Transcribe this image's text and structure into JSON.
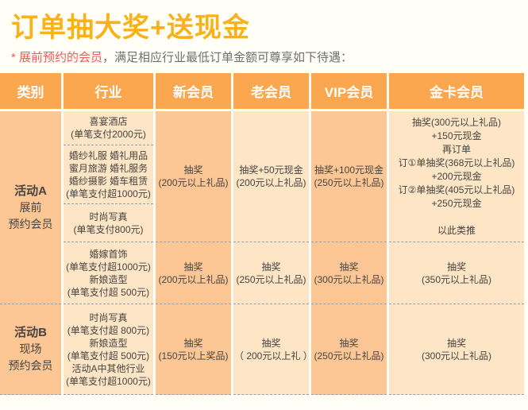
{
  "page": {
    "title": "订单抽大奖+送现金",
    "note": {
      "star": "*",
      "highlight": " 展前预约的会员",
      "rest": "，满足相应行业最低订单金额可尊享如下待遇："
    }
  },
  "colors": {
    "title": "#fcb216",
    "note_highlight": "#fa5a5a",
    "header_bg": "#faa74f",
    "column_dark": "#fcc795",
    "column_light": "#fde5c6",
    "page_bg": "#fffff8",
    "dash": "#97a0a6"
  },
  "table": {
    "headers": [
      "类别",
      "行业",
      "新会员",
      "老会员",
      "VIP会员",
      "金卡会员"
    ],
    "activityA": {
      "category_title": "活动A",
      "category_sub": "展前\n预约会员",
      "industry_banquet": "喜宴酒店\n(单笔支付2000元)",
      "industry_wedding_group": "婚纱礼服  婚礼用品\n蜜月旅游  婚礼服务\n婚纱摄影  婚车租赁\n(单笔支付超1000元)",
      "industry_photo": "时尚写真\n(单笔支付800元)",
      "industry_jewelry": "婚嫁首饰\n(单笔支付超1000元)\n新娘造型\n(单笔支付超 500元)",
      "new_member_1": "抽奖\n(200元以上礼品)",
      "old_member_1": "抽奖+50元现金\n(200元以上礼品)",
      "vip_member_1": "抽奖+100元现金\n(250元以上礼品)",
      "gold_member_1": "抽奖(300元以上礼品)\n+150元现金\n再订单\n订①单抽奖(368元以上礼品)\n+200元现金\n订②单抽奖(405元以上礼品)\n+250元现金\n\n以此类推",
      "new_member_2": "抽奖\n(200元以上礼品)",
      "old_member_2": "抽奖\n(250元以上礼品)",
      "vip_member_2": "抽奖\n(300元以上礼品)",
      "gold_member_2": "抽奖\n(350元以上礼品)"
    },
    "activityB": {
      "category_title": "活动B",
      "category_sub": "现场\n预约会员",
      "industry": "时尚写真\n(单笔支付超 800元)\n新娘造型\n(单笔支付超 500元)\n活动A中其他行业\n(单笔支付超1000元)",
      "new_member": "抽奖\n(150元以上奖品)",
      "old_member": "抽奖\n（ 200元以上礼 ）",
      "vip_member": "抽奖\n(250元以上礼品)",
      "gold_member": "抽奖\n(300元以上礼品)"
    }
  }
}
